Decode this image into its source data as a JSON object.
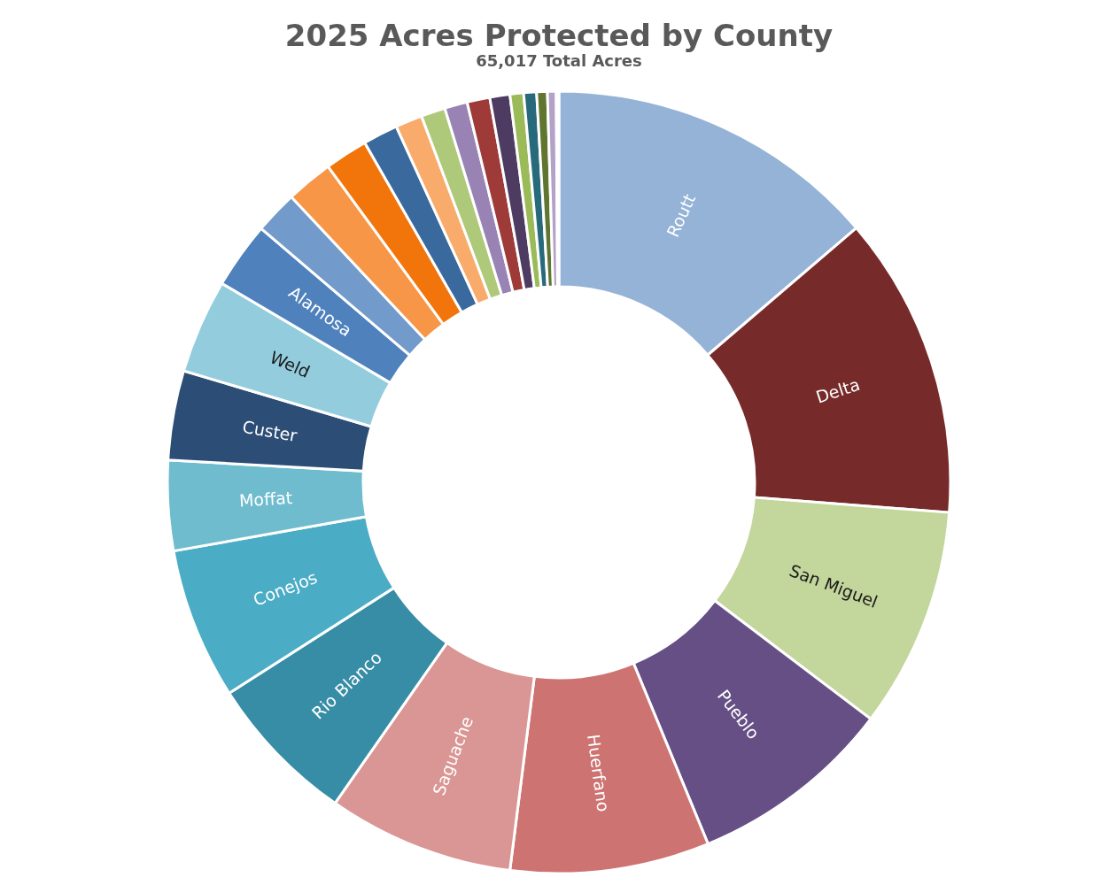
{
  "chart_data": {
    "type": "donut",
    "title": "2025 Acres Protected by County",
    "subtitle": "65,017 Total Acres",
    "categories": [
      "Routt",
      "Delta",
      "San Miguel",
      "Pueblo",
      "Huerfano",
      "Saguache",
      "Rio Blanco",
      "Conejos",
      "Moffat",
      "Custer",
      "Weld",
      "Alamosa",
      null,
      null,
      null,
      null,
      null,
      null,
      null,
      null,
      null,
      null,
      null,
      null,
      null,
      null
    ],
    "values": [
      13.73,
      12.5,
      9.11,
      8.44,
      8.22,
      7.69,
      6.25,
      6.25,
      3.72,
      3.69,
      3.89,
      2.75,
      1.78,
      1.94,
      1.78,
      1.44,
      1.11,
      1.0,
      0.94,
      0.94,
      0.83,
      0.56,
      0.53,
      0.44,
      0.36,
      0.11
    ],
    "colors": [
      "#95b3d7",
      "#772a2a",
      "#c3d69b",
      "#654f85",
      "#cd7371",
      "#d99694",
      "#378da6",
      "#4bacc6",
      "#6fbccf",
      "#2c4d75",
      "#93cddd",
      "#4f81bd",
      "#729aca",
      "#f79646",
      "#f2750b",
      "#3a699d",
      "#f9ab6b",
      "#afc97a",
      "#9983b5",
      "#9e3a38",
      "#4d3b62",
      "#9bbb59",
      "#276a7c",
      "#5f7530",
      "#b3a2c7",
      "#c0504d"
    ]
  }
}
